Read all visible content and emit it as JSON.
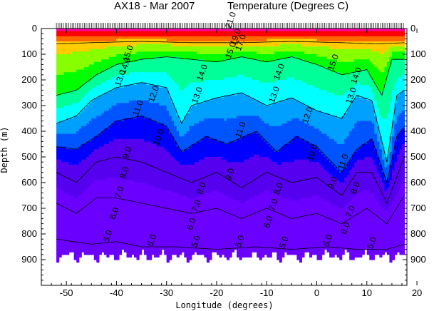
{
  "chart_data": {
    "type": "heatmap",
    "title_left": "AX18 - Mar 2007",
    "title_right": "Temperature (Degrees C)",
    "xlabel": "Longitude (degrees)",
    "ylabel": "Depth (m)",
    "xlim": [
      -55,
      18
    ],
    "ylim": [
      0,
      1000
    ],
    "y_inverted": true,
    "x_ticks": [
      -50,
      -40,
      -30,
      -20,
      -10,
      0,
      10,
      20
    ],
    "y_ticks": [
      0,
      100,
      200,
      300,
      400,
      500,
      600,
      700,
      800,
      900
    ],
    "x_tick_labels": [
      "-50",
      "-40",
      "-30",
      "-20",
      "-10",
      "0",
      "10",
      "20"
    ],
    "y_tick_labels": [
      "0",
      "100",
      "200",
      "300",
      "400",
      "500",
      "600",
      "700",
      "800",
      "900"
    ],
    "data_range_x": [
      -52,
      17.5
    ],
    "bottom_depth_typical": 880,
    "color_levels": [
      {
        "t_min": 5.0,
        "color": "#6a00ff"
      },
      {
        "t_min": 8.0,
        "color": "#5500ee"
      },
      {
        "t_min": 10.0,
        "color": "#0000ff"
      },
      {
        "t_min": 11.0,
        "color": "#0055ff"
      },
      {
        "t_min": 12.0,
        "color": "#00a0ff"
      },
      {
        "t_min": 13.0,
        "color": "#00ffff"
      },
      {
        "t_min": 14.0,
        "color": "#00ff99"
      },
      {
        "t_min": 15.0,
        "color": "#00ff00"
      },
      {
        "t_min": 17.0,
        "color": "#88ff00"
      },
      {
        "t_min": 19.0,
        "color": "#ffcc00"
      },
      {
        "t_min": 21.0,
        "color": "#ff6600"
      },
      {
        "t_min": 23.0,
        "color": "#ff0000"
      },
      {
        "t_min": 26.0,
        "color": "#ff00aa"
      }
    ],
    "isotherm_depths": [
      {
        "temp": 20.0,
        "depths": [
          [
            -52,
            60
          ],
          [
            -45,
            55
          ],
          [
            -35,
            50
          ],
          [
            -25,
            55
          ],
          [
            -15,
            55
          ],
          [
            -5,
            50
          ],
          [
            5,
            55
          ],
          [
            12,
            60
          ],
          [
            17.5,
            55
          ]
        ]
      },
      {
        "temp": 15.0,
        "depths": [
          [
            -52,
            260
          ],
          [
            -48,
            240
          ],
          [
            -44,
            180
          ],
          [
            -40,
            140
          ],
          [
            -35,
            120
          ],
          [
            -30,
            110
          ],
          [
            -25,
            120
          ],
          [
            -20,
            130
          ],
          [
            -15,
            110
          ],
          [
            -10,
            130
          ],
          [
            -5,
            110
          ],
          [
            0,
            140
          ],
          [
            5,
            180
          ],
          [
            10,
            160
          ],
          [
            13,
            260
          ],
          [
            15,
            120
          ],
          [
            17.5,
            120
          ]
        ]
      },
      {
        "temp": 13.0,
        "depths": [
          [
            -52,
            370
          ],
          [
            -48,
            340
          ],
          [
            -45,
            280
          ],
          [
            -40,
            230
          ],
          [
            -35,
            210
          ],
          [
            -30,
            230
          ],
          [
            -27,
            370
          ],
          [
            -25,
            300
          ],
          [
            -20,
            270
          ],
          [
            -15,
            250
          ],
          [
            -10,
            300
          ],
          [
            -5,
            270
          ],
          [
            0,
            320
          ],
          [
            5,
            350
          ],
          [
            8,
            260
          ],
          [
            11,
            280
          ],
          [
            14,
            520
          ],
          [
            16,
            260
          ],
          [
            17.5,
            240
          ]
        ]
      },
      {
        "temp": 11.0,
        "depths": [
          [
            -52,
            460
          ],
          [
            -48,
            470
          ],
          [
            -44,
            420
          ],
          [
            -40,
            360
          ],
          [
            -35,
            340
          ],
          [
            -30,
            380
          ],
          [
            -27,
            480
          ],
          [
            -22,
            420
          ],
          [
            -18,
            450
          ],
          [
            -12,
            400
          ],
          [
            -8,
            480
          ],
          [
            -4,
            420
          ],
          [
            0,
            460
          ],
          [
            5,
            560
          ],
          [
            8,
            470
          ],
          [
            11,
            430
          ],
          [
            14,
            600
          ],
          [
            16,
            420
          ],
          [
            17.5,
            380
          ]
        ]
      },
      {
        "temp": 9.0,
        "depths": [
          [
            -52,
            560
          ],
          [
            -48,
            600
          ],
          [
            -44,
            520
          ],
          [
            -40,
            500
          ],
          [
            -35,
            520
          ],
          [
            -30,
            560
          ],
          [
            -25,
            600
          ],
          [
            -20,
            560
          ],
          [
            -15,
            620
          ],
          [
            -10,
            560
          ],
          [
            -5,
            600
          ],
          [
            0,
            580
          ],
          [
            5,
            650
          ],
          [
            8,
            560
          ],
          [
            11,
            560
          ],
          [
            14,
            680
          ],
          [
            17.5,
            500
          ]
        ]
      },
      {
        "temp": 7.0,
        "depths": [
          [
            -52,
            680
          ],
          [
            -48,
            720
          ],
          [
            -44,
            660
          ],
          [
            -40,
            660
          ],
          [
            -35,
            680
          ],
          [
            -30,
            700
          ],
          [
            -25,
            720
          ],
          [
            -20,
            700
          ],
          [
            -15,
            740
          ],
          [
            -10,
            700
          ],
          [
            -5,
            740
          ],
          [
            0,
            720
          ],
          [
            5,
            760
          ],
          [
            10,
            700
          ],
          [
            14,
            760
          ],
          [
            17.5,
            650
          ]
        ]
      },
      {
        "temp": 5.0,
        "depths": [
          [
            -52,
            820
          ],
          [
            -45,
            840
          ],
          [
            -40,
            830
          ],
          [
            -35,
            850
          ],
          [
            -28,
            850
          ],
          [
            -20,
            860
          ],
          [
            -12,
            850
          ],
          [
            -5,
            860
          ],
          [
            2,
            850
          ],
          [
            8,
            860
          ],
          [
            14,
            860
          ],
          [
            17.5,
            840
          ]
        ]
      }
    ],
    "contour_labels": [
      "21.0",
      "19.0",
      "17.0",
      "15.0",
      "15.0",
      "14.0",
      "14.0",
      "14.0",
      "15.0",
      "14.0",
      "13.0",
      "13.0",
      "13.0",
      "13.0",
      "12.0",
      "12.0",
      "11.0",
      "11.0",
      "11.0",
      "10.0",
      "10.0",
      "9.0",
      "9.0",
      "9.0",
      "8.0",
      "8.0",
      "8.0",
      "8.0",
      "7.0",
      "7.0",
      "7.0",
      "7.0",
      "6.0",
      "6.0",
      "6.0",
      "6.0",
      "5.0",
      "5.0",
      "5.0",
      "5.0",
      "5.0",
      "5.0",
      "5.0"
    ]
  }
}
